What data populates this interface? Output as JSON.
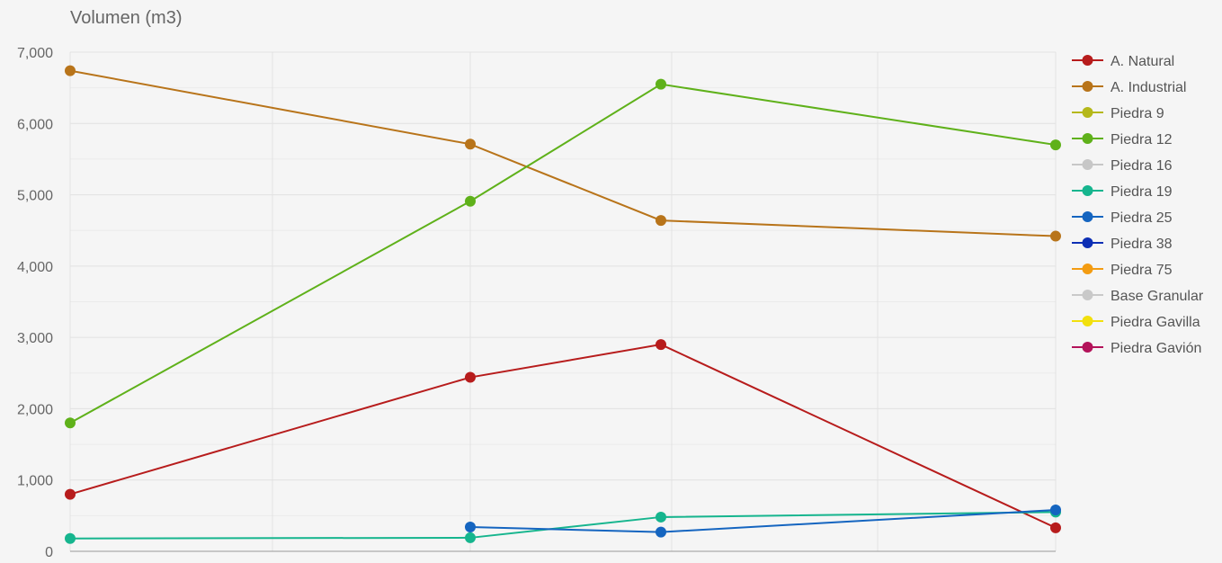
{
  "chart_data": {
    "type": "line",
    "title": "",
    "ylabel": "Volumen (m3)",
    "xlabel": "",
    "ylim": [
      0,
      7000
    ],
    "y_ticks": [
      "0",
      "1,000",
      "2,000",
      "3,000",
      "4,000",
      "5,000",
      "6,000",
      "7,000"
    ],
    "y_tick_values": [
      0,
      1000,
      2000,
      3000,
      4000,
      5000,
      6000,
      7000
    ],
    "x_points": [
      1,
      2,
      3,
      4
    ],
    "grid": true,
    "legend_position": "right",
    "series": [
      {
        "name": "A. Natural",
        "color": "#b71c1c",
        "values": [
          800,
          2440,
          2900,
          330
        ]
      },
      {
        "name": "A. Industrial",
        "color": "#b8741a",
        "values": [
          6740,
          5710,
          4640,
          4420
        ]
      },
      {
        "name": "Piedra 9",
        "color": "#b5b81a",
        "values": [
          null,
          null,
          null,
          null
        ]
      },
      {
        "name": "Piedra 12",
        "color": "#5fb11a",
        "values": [
          1800,
          4910,
          6550,
          5700
        ]
      },
      {
        "name": "Piedra 16",
        "color": "#c7c7c7",
        "values": [
          null,
          null,
          null,
          null
        ]
      },
      {
        "name": "Piedra 19",
        "color": "#16b58e",
        "values": [
          180,
          190,
          480,
          550
        ]
      },
      {
        "name": "Piedra 25",
        "color": "#1565c0",
        "values": [
          null,
          340,
          270,
          580
        ]
      },
      {
        "name": "Piedra 38",
        "color": "#0d2fb5",
        "values": [
          null,
          null,
          null,
          null
        ]
      },
      {
        "name": "Piedra 75",
        "color": "#f39c12",
        "values": [
          null,
          null,
          null,
          null
        ]
      },
      {
        "name": "Base Granular",
        "color": "#c9c9c9",
        "values": [
          null,
          null,
          null,
          null
        ]
      },
      {
        "name": "Piedra Gavilla",
        "color": "#f2e00d",
        "values": [
          null,
          null,
          null,
          null
        ]
      },
      {
        "name": "Piedra Gavión",
        "color": "#b3135a",
        "values": [
          null,
          null,
          null,
          null
        ]
      }
    ]
  }
}
